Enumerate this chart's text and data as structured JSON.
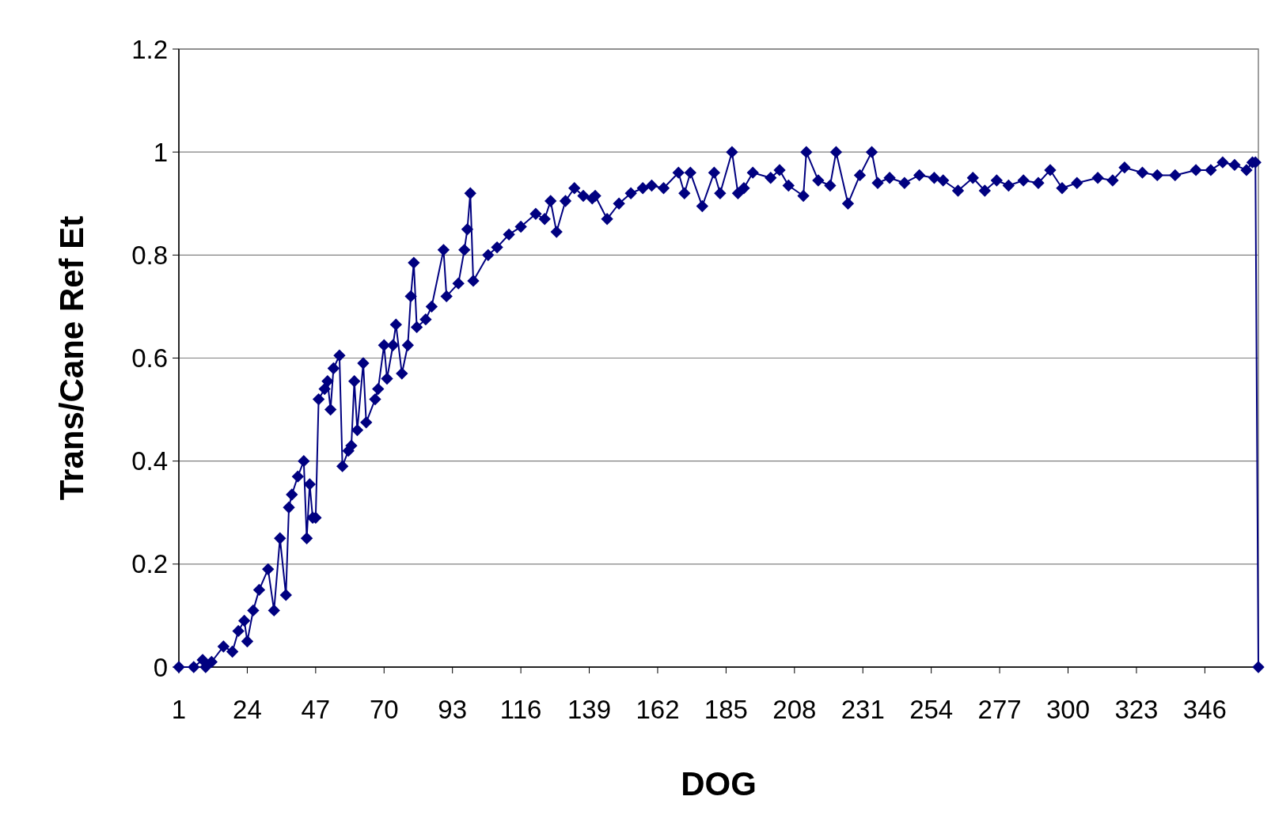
{
  "chart_data": {
    "type": "line",
    "xlabel": "DOG",
    "ylabel": "Trans/Cane Ref Et",
    "marker": "diamond",
    "grid": "y",
    "xlim": [
      1,
      364
    ],
    "xticks": [
      1,
      24,
      47,
      70,
      93,
      116,
      139,
      162,
      185,
      208,
      231,
      254,
      277,
      300,
      323,
      346
    ],
    "ylim": [
      0,
      1.2
    ],
    "yticks": [
      0,
      0.2,
      0.4,
      0.6,
      0.8,
      1,
      1.2
    ],
    "series": [
      {
        "color": "#000080",
        "x": [
          1,
          6,
          9,
          10,
          12,
          16,
          19,
          21,
          23,
          24,
          26,
          28,
          31,
          33,
          35,
          37,
          38,
          39,
          41,
          43,
          44,
          45,
          46,
          47,
          48,
          50,
          51,
          52,
          53,
          55,
          56,
          58,
          59,
          60,
          61,
          63,
          64,
          67,
          68,
          70,
          71,
          73,
          74,
          76,
          78,
          79,
          80,
          81,
          84,
          86,
          90,
          91,
          95,
          97,
          98,
          99,
          100,
          105,
          108,
          112,
          116,
          121,
          124,
          126,
          128,
          131,
          134,
          137,
          140,
          141,
          145,
          149,
          153,
          157,
          160,
          164,
          169,
          171,
          173,
          177,
          181,
          183,
          187,
          189,
          191,
          194,
          200,
          203,
          206,
          211,
          212,
          216,
          220,
          222,
          226,
          230,
          234,
          236,
          240,
          245,
          250,
          255,
          258,
          263,
          268,
          272,
          276,
          280,
          285,
          290,
          294,
          298,
          303,
          310,
          315,
          319,
          325,
          330,
          336,
          343,
          348,
          352,
          356,
          360,
          362,
          363,
          364
        ],
        "values": [
          0,
          0,
          0.014,
          0,
          0.01,
          0.04,
          0.03,
          0.07,
          0.09,
          0.05,
          0.11,
          0.15,
          0.19,
          0.11,
          0.25,
          0.14,
          0.31,
          0.335,
          0.37,
          0.4,
          0.25,
          0.355,
          0.29,
          0.29,
          0.52,
          0.54,
          0.555,
          0.5,
          0.58,
          0.605,
          0.39,
          0.42,
          0.43,
          0.555,
          0.46,
          0.59,
          0.475,
          0.52,
          0.54,
          0.625,
          0.56,
          0.625,
          0.665,
          0.57,
          0.625,
          0.72,
          0.785,
          0.66,
          0.675,
          0.7,
          0.81,
          0.72,
          0.745,
          0.81,
          0.85,
          0.92,
          0.75,
          0.8,
          0.815,
          0.84,
          0.855,
          0.88,
          0.87,
          0.905,
          0.845,
          0.905,
          0.93,
          0.915,
          0.91,
          0.915,
          0.87,
          0.9,
          0.92,
          0.93,
          0.935,
          0.93,
          0.96,
          0.92,
          0.96,
          0.895,
          0.96,
          0.92,
          1,
          0.92,
          0.93,
          0.96,
          0.95,
          0.965,
          0.935,
          0.915,
          1,
          0.945,
          0.935,
          1,
          0.9,
          0.955,
          1,
          0.94,
          0.95,
          0.94,
          0.955,
          0.95,
          0.945,
          0.925,
          0.95,
          0.925,
          0.945,
          0.935,
          0.945,
          0.94,
          0.965,
          0.93,
          0.94,
          0.95,
          0.945,
          0.97,
          0.96,
          0.955,
          0.955,
          0.965,
          0.965,
          0.98,
          0.975,
          0.965,
          0.98,
          0.98,
          0
        ]
      }
    ]
  }
}
